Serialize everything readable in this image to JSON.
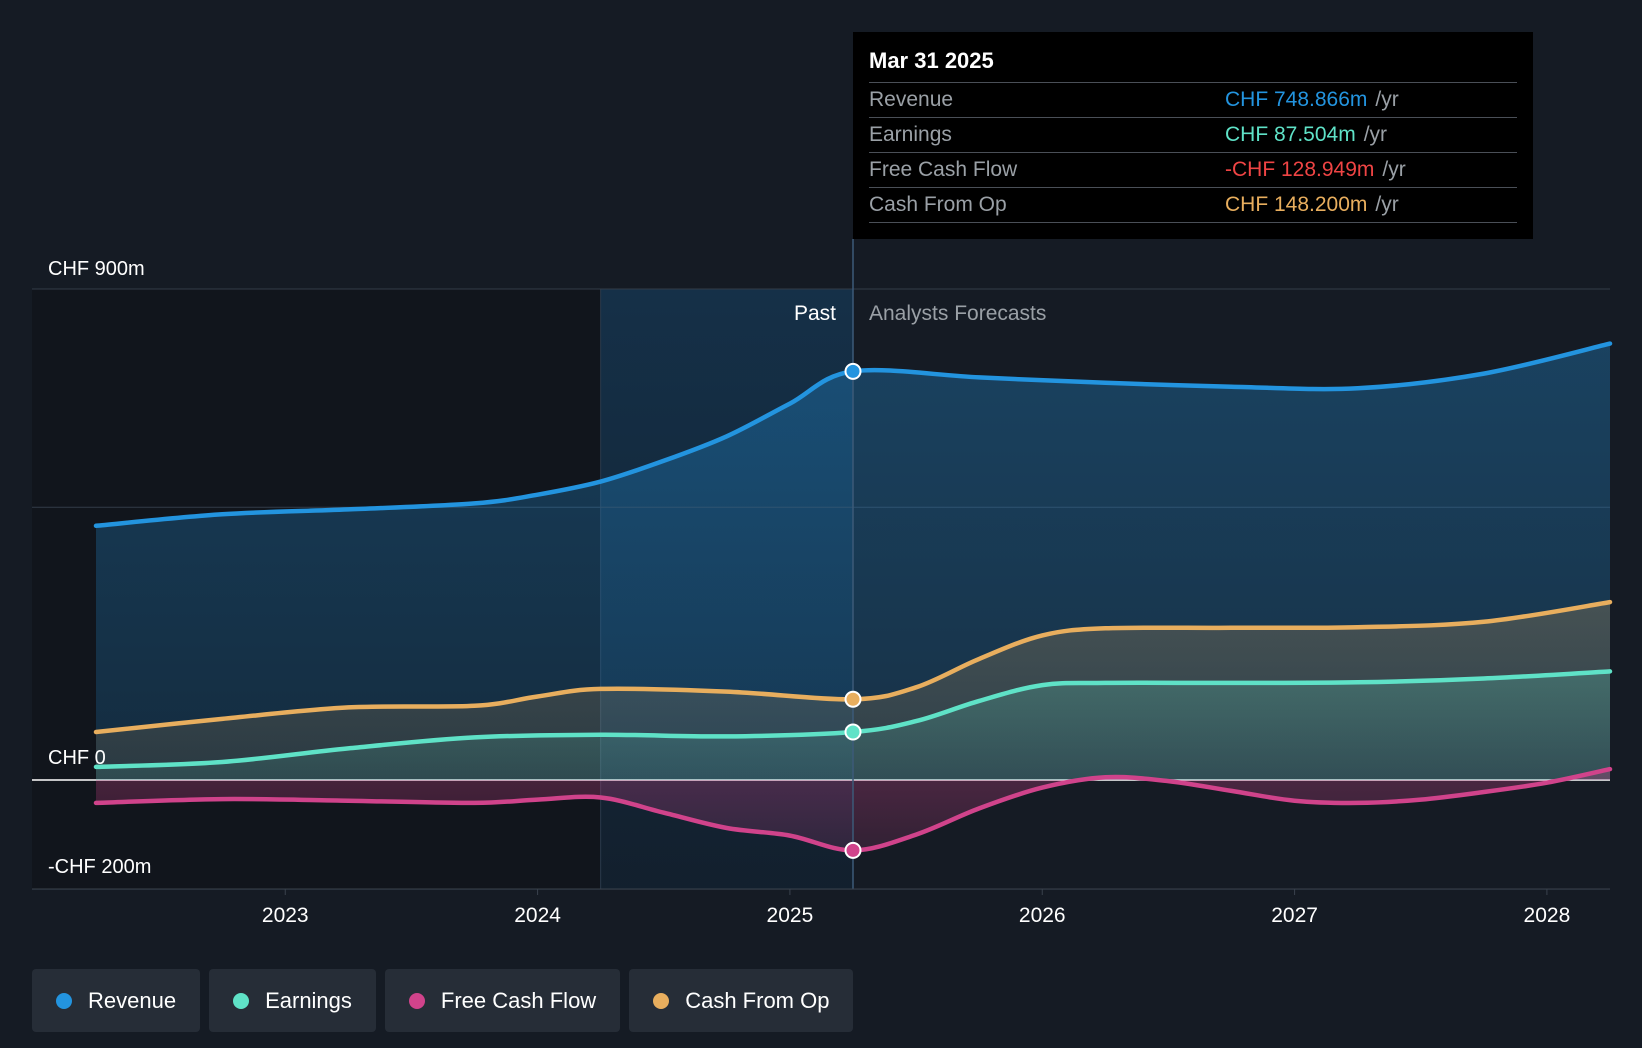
{
  "chart_data": {
    "type": "area",
    "title": "",
    "currency": "CHF",
    "x_axis": {
      "ticks": [
        2023,
        2024,
        2025,
        2026,
        2027,
        2028
      ],
      "tick_labels": [
        "2023",
        "2024",
        "2025",
        "2026",
        "2027",
        "2028"
      ],
      "range": [
        2022.25,
        2028.25
      ]
    },
    "y_axis": {
      "range": [
        -200,
        900
      ],
      "labels": [
        {
          "value": 900,
          "text": "CHF 900m"
        },
        {
          "value": 0,
          "text": "CHF 0"
        },
        {
          "value": -200,
          "text": "-CHF 200m"
        }
      ],
      "gridlines": [
        900,
        500,
        0,
        -200
      ]
    },
    "past_label": "Past",
    "forecast_label": "Analysts Forecasts",
    "divider_x": 2025.25,
    "highlight_start": 2024.25,
    "series": [
      {
        "name": "Revenue",
        "color": "#2394df",
        "points": [
          [
            2022.25,
            466
          ],
          [
            2022.75,
            487
          ],
          [
            2023.25,
            496
          ],
          [
            2023.75,
            507
          ],
          [
            2024.0,
            523
          ],
          [
            2024.25,
            547
          ],
          [
            2024.5,
            585
          ],
          [
            2024.75,
            630
          ],
          [
            2025.0,
            690
          ],
          [
            2025.25,
            749
          ],
          [
            2025.75,
            738
          ],
          [
            2026.25,
            728
          ],
          [
            2026.75,
            721
          ],
          [
            2027.25,
            718
          ],
          [
            2027.75,
            745
          ],
          [
            2028.25,
            800
          ]
        ]
      },
      {
        "name": "Cash From Op",
        "color": "#e8ae5e",
        "points": [
          [
            2022.25,
            88
          ],
          [
            2022.75,
            112
          ],
          [
            2023.25,
            133
          ],
          [
            2023.75,
            136
          ],
          [
            2024.0,
            153
          ],
          [
            2024.25,
            167
          ],
          [
            2024.75,
            162
          ],
          [
            2025.25,
            148
          ],
          [
            2025.5,
            170
          ],
          [
            2025.75,
            222
          ],
          [
            2026.0,
            265
          ],
          [
            2026.25,
            278
          ],
          [
            2026.75,
            279
          ],
          [
            2027.25,
            280
          ],
          [
            2027.75,
            290
          ],
          [
            2028.25,
            326
          ]
        ]
      },
      {
        "name": "Earnings",
        "color": "#5fe2c7",
        "points": [
          [
            2022.25,
            24
          ],
          [
            2022.75,
            33
          ],
          [
            2023.25,
            58
          ],
          [
            2023.75,
            78
          ],
          [
            2024.25,
            83
          ],
          [
            2024.75,
            80
          ],
          [
            2025.25,
            88
          ],
          [
            2025.5,
            108
          ],
          [
            2025.75,
            145
          ],
          [
            2026.0,
            174
          ],
          [
            2026.25,
            178
          ],
          [
            2026.75,
            178
          ],
          [
            2027.25,
            179
          ],
          [
            2027.75,
            186
          ],
          [
            2028.25,
            199
          ]
        ]
      },
      {
        "name": "Free Cash Flow",
        "color": "#d0438b",
        "points": [
          [
            2022.25,
            -42
          ],
          [
            2022.75,
            -35
          ],
          [
            2023.25,
            -38
          ],
          [
            2023.75,
            -42
          ],
          [
            2024.0,
            -36
          ],
          [
            2024.25,
            -32
          ],
          [
            2024.5,
            -60
          ],
          [
            2024.75,
            -88
          ],
          [
            2025.0,
            -102
          ],
          [
            2025.25,
            -129
          ],
          [
            2025.5,
            -100
          ],
          [
            2025.75,
            -52
          ],
          [
            2026.0,
            -14
          ],
          [
            2026.25,
            5
          ],
          [
            2026.5,
            -2
          ],
          [
            2026.75,
            -20
          ],
          [
            2027.0,
            -38
          ],
          [
            2027.25,
            -42
          ],
          [
            2027.5,
            -36
          ],
          [
            2027.75,
            -22
          ],
          [
            2028.0,
            -5
          ],
          [
            2028.25,
            20
          ]
        ]
      }
    ],
    "tooltip": {
      "date": "Mar 31 2025",
      "rows": [
        {
          "label": "Revenue",
          "value": "CHF 748.866m",
          "unit": "/yr",
          "color": "#2394df"
        },
        {
          "label": "Earnings",
          "value": "CHF 87.504m",
          "unit": "/yr",
          "color": "#5fe2c7"
        },
        {
          "label": "Free Cash Flow",
          "value": "-CHF 128.949m",
          "unit": "/yr",
          "color": "#ef4444"
        },
        {
          "label": "Cash From Op",
          "value": "CHF 148.200m",
          "unit": "/yr",
          "color": "#e8ae5e"
        }
      ]
    },
    "legend": [
      {
        "name": "Revenue",
        "color": "#2394df"
      },
      {
        "name": "Earnings",
        "color": "#5fe2c7"
      },
      {
        "name": "Free Cash Flow",
        "color": "#d0438b"
      },
      {
        "name": "Cash From Op",
        "color": "#e8ae5e"
      }
    ]
  }
}
